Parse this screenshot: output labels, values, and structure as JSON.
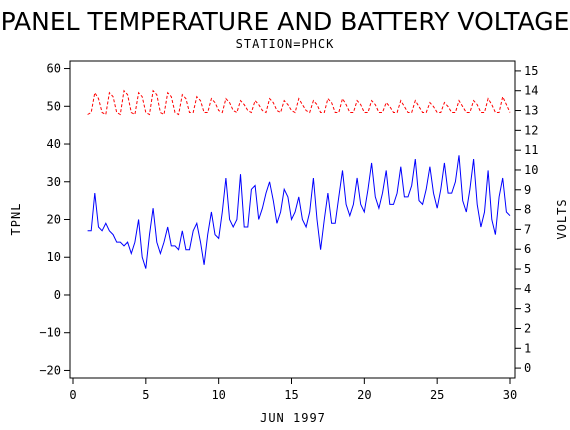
{
  "chart_data": {
    "type": "line",
    "title": "PANEL TEMPERATURE AND BATTERY VOLTAGE",
    "subtitle": "STATION=PHCK",
    "xlabel": "JUN 1997",
    "ylabel_left": "TPNL",
    "ylabel_right": "VOLTS",
    "xlim": [
      0,
      30
    ],
    "ylim_left": [
      -22,
      62
    ],
    "ylim_right": [
      -0.5,
      15.5
    ],
    "x_ticks": [
      0,
      5,
      10,
      15,
      20,
      25,
      30
    ],
    "y_left_ticks": [
      -20,
      -10,
      0,
      10,
      20,
      30,
      40,
      50,
      60
    ],
    "y_right_ticks": [
      0,
      1,
      2,
      3,
      4,
      5,
      6,
      7,
      8,
      9,
      10,
      11,
      12,
      13,
      14,
      15
    ],
    "series": [
      {
        "axis": "left",
        "color": "#0000ff",
        "dash": "solid",
        "x": [
          1.0,
          1.25,
          1.5,
          1.75,
          2.0,
          2.25,
          2.5,
          2.75,
          3.0,
          3.25,
          3.5,
          3.75,
          4.0,
          4.25,
          4.5,
          4.75,
          5.0,
          5.25,
          5.5,
          5.75,
          6.0,
          6.25,
          6.5,
          6.75,
          7.0,
          7.25,
          7.5,
          7.75,
          8.0,
          8.25,
          8.5,
          8.75,
          9.0,
          9.25,
          9.5,
          9.75,
          10.0,
          10.25,
          10.5,
          10.75,
          11.0,
          11.25,
          11.5,
          11.75,
          12.0,
          12.25,
          12.5,
          12.75,
          13.0,
          13.25,
          13.5,
          13.75,
          14.0,
          14.25,
          14.5,
          14.75,
          15.0,
          15.25,
          15.5,
          15.75,
          16.0,
          16.25,
          16.5,
          16.75,
          17.0,
          17.25,
          17.5,
          17.75,
          18.0,
          18.25,
          18.5,
          18.75,
          19.0,
          19.25,
          19.5,
          19.75,
          20.0,
          20.25,
          20.5,
          20.75,
          21.0,
          21.25,
          21.5,
          21.75,
          22.0,
          22.25,
          22.5,
          22.75,
          23.0,
          23.25,
          23.5,
          23.75,
          24.0,
          24.25,
          24.5,
          24.75,
          25.0,
          25.25,
          25.5,
          25.75,
          26.0,
          26.25,
          26.5,
          26.75,
          27.0,
          27.25,
          27.5,
          27.75,
          28.0,
          28.25,
          28.5,
          28.75,
          29.0,
          29.25,
          29.5,
          29.75,
          30.0
        ],
        "y": [
          17,
          17,
          27,
          18,
          17,
          19,
          17,
          16,
          14,
          14,
          13,
          14,
          11,
          14,
          20,
          10,
          7,
          16,
          23,
          14,
          11,
          14,
          18,
          13,
          13,
          12,
          17,
          12,
          12,
          17,
          19,
          14,
          8,
          16,
          22,
          16,
          15,
          22,
          31,
          20,
          18,
          20,
          32,
          18,
          18,
          28,
          29,
          20,
          23,
          27,
          30,
          25,
          19,
          22,
          28,
          26,
          20,
          22,
          26,
          20,
          18,
          22,
          31,
          20,
          12,
          20,
          27,
          19,
          19,
          26,
          33,
          24,
          21,
          24,
          31,
          24,
          22,
          28,
          35,
          26,
          23,
          27,
          33,
          24,
          24,
          27,
          34,
          26,
          26,
          29,
          36,
          25,
          24,
          28,
          34,
          27,
          23,
          28,
          35,
          27,
          27,
          30,
          37,
          25,
          22,
          28,
          36,
          24,
          18,
          22,
          33,
          20,
          16,
          26,
          31,
          22,
          21
        ]
      },
      {
        "axis": "right",
        "color": "#ff0000",
        "dash": "dashed",
        "x": [
          1.0,
          1.25,
          1.5,
          1.75,
          2.0,
          2.25,
          2.5,
          2.75,
          3.0,
          3.25,
          3.5,
          3.75,
          4.0,
          4.25,
          4.5,
          4.75,
          5.0,
          5.25,
          5.5,
          5.75,
          6.0,
          6.25,
          6.5,
          6.75,
          7.0,
          7.25,
          7.5,
          7.75,
          8.0,
          8.25,
          8.5,
          8.75,
          9.0,
          9.25,
          9.5,
          9.75,
          10.0,
          10.25,
          10.5,
          10.75,
          11.0,
          11.25,
          11.5,
          11.75,
          12.0,
          12.25,
          12.5,
          12.75,
          13.0,
          13.25,
          13.5,
          13.75,
          14.0,
          14.25,
          14.5,
          14.75,
          15.0,
          15.25,
          15.5,
          15.75,
          16.0,
          16.25,
          16.5,
          16.75,
          17.0,
          17.25,
          17.5,
          17.75,
          18.0,
          18.25,
          18.5,
          18.75,
          19.0,
          19.25,
          19.5,
          19.75,
          20.0,
          20.25,
          20.5,
          20.75,
          21.0,
          21.25,
          21.5,
          21.75,
          22.0,
          22.25,
          22.5,
          22.75,
          23.0,
          23.25,
          23.5,
          23.75,
          24.0,
          24.25,
          24.5,
          24.75,
          25.0,
          25.25,
          25.5,
          25.75,
          26.0,
          26.25,
          26.5,
          26.75,
          27.0,
          27.25,
          27.5,
          27.75,
          28.0,
          28.25,
          28.5,
          28.75,
          29.0,
          29.25,
          29.5,
          29.75,
          30.0
        ],
        "y": [
          12.8,
          12.9,
          13.9,
          13.6,
          12.9,
          12.8,
          13.9,
          13.7,
          12.9,
          12.8,
          14.0,
          13.8,
          12.9,
          12.8,
          13.9,
          13.7,
          12.9,
          12.8,
          14.0,
          13.8,
          12.9,
          12.8,
          13.9,
          13.7,
          12.9,
          12.8,
          13.8,
          13.6,
          12.9,
          12.9,
          13.7,
          13.5,
          12.9,
          12.9,
          13.6,
          13.4,
          13.0,
          12.9,
          13.6,
          13.4,
          13.0,
          12.9,
          13.5,
          13.3,
          13.0,
          12.9,
          13.5,
          13.3,
          13.0,
          12.9,
          13.6,
          13.4,
          13.0,
          12.9,
          13.5,
          13.3,
          13.0,
          12.9,
          13.6,
          13.3,
          13.0,
          12.9,
          13.5,
          13.3,
          12.9,
          12.9,
          13.6,
          13.4,
          12.9,
          12.9,
          13.6,
          13.3,
          12.9,
          12.9,
          13.5,
          13.3,
          12.9,
          12.9,
          13.5,
          13.3,
          12.9,
          12.9,
          13.4,
          13.2,
          12.9,
          12.9,
          13.5,
          13.2,
          12.9,
          12.9,
          13.5,
          13.2,
          12.9,
          12.9,
          13.4,
          13.2,
          12.9,
          12.9,
          13.4,
          13.2,
          12.9,
          12.9,
          13.5,
          13.2,
          12.9,
          12.9,
          13.5,
          13.3,
          12.9,
          12.9,
          13.6,
          13.3,
          12.9,
          12.9,
          13.7,
          13.3,
          12.9
        ]
      }
    ]
  }
}
